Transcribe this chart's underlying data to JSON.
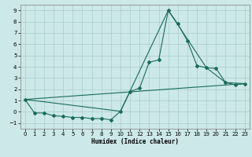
{
  "xlabel": "Humidex (Indice chaleur)",
  "xlim": [
    -0.5,
    23.5
  ],
  "ylim": [
    -1.5,
    9.5
  ],
  "xticks": [
    0,
    1,
    2,
    3,
    4,
    5,
    6,
    7,
    8,
    9,
    10,
    11,
    12,
    13,
    14,
    15,
    16,
    17,
    18,
    19,
    20,
    21,
    22,
    23
  ],
  "yticks": [
    -1,
    0,
    1,
    2,
    3,
    4,
    5,
    6,
    7,
    8,
    9
  ],
  "background_color": "#cce8e8",
  "grid_color": "#aacccc",
  "line_color": "#1a6b5a",
  "line1_x": [
    0,
    1,
    2,
    3,
    4,
    5,
    6,
    7,
    8,
    9,
    10,
    11,
    12,
    13,
    14,
    15,
    16,
    17,
    18,
    19,
    20,
    21,
    22,
    23
  ],
  "line1_y": [
    1.1,
    -0.1,
    -0.1,
    -0.35,
    -0.4,
    -0.5,
    -0.5,
    -0.6,
    -0.6,
    -0.7,
    0.05,
    1.8,
    2.1,
    4.4,
    4.6,
    9.0,
    7.8,
    6.3,
    4.1,
    3.9,
    3.85,
    2.6,
    2.4,
    2.5
  ],
  "line2_x": [
    0,
    10,
    15,
    19,
    21,
    23
  ],
  "line2_y": [
    1.1,
    0.05,
    9.0,
    3.9,
    2.6,
    2.5
  ],
  "line3_x": [
    0,
    23
  ],
  "line3_y": [
    1.1,
    2.5
  ]
}
